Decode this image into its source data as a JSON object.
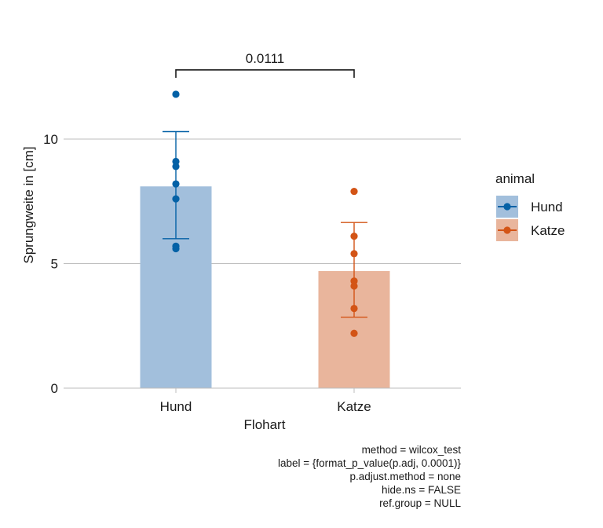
{
  "chart_data": {
    "type": "bar",
    "categories": [
      "Hund",
      "Katze"
    ],
    "xlabel": "Flohart",
    "ylabel": "Sprungweite in [cm]",
    "ylim": [
      0,
      12.5
    ],
    "yticks": [
      0,
      5,
      10
    ],
    "grid": "horizontal major",
    "legend": {
      "title": "animal",
      "position": "right",
      "entries": [
        "Hund",
        "Katze"
      ]
    },
    "series": [
      {
        "category": "Hund",
        "mean": 8.1,
        "error_low": 6.0,
        "error_high": 10.3,
        "points": [
          11.8,
          9.1,
          8.9,
          8.2,
          7.6,
          5.7,
          5.6
        ],
        "color": "#0461A6",
        "bar_color": "#A2BFDC"
      },
      {
        "category": "Katze",
        "mean": 4.7,
        "error_low": 2.85,
        "error_high": 6.65,
        "points": [
          7.9,
          6.1,
          5.4,
          4.3,
          4.1,
          3.2,
          2.2
        ],
        "color": "#D35416",
        "bar_color": "#E9B59C"
      }
    ],
    "bracket": {
      "from": "Hund",
      "to": "Katze",
      "label": "0.0111"
    },
    "caption": [
      "method = wilcox_test",
      "label = {format_p_value(p.adj, 0.0001)}",
      "p.adjust.method = none",
      "hide.ns = FALSE",
      "ref.group = NULL"
    ]
  }
}
